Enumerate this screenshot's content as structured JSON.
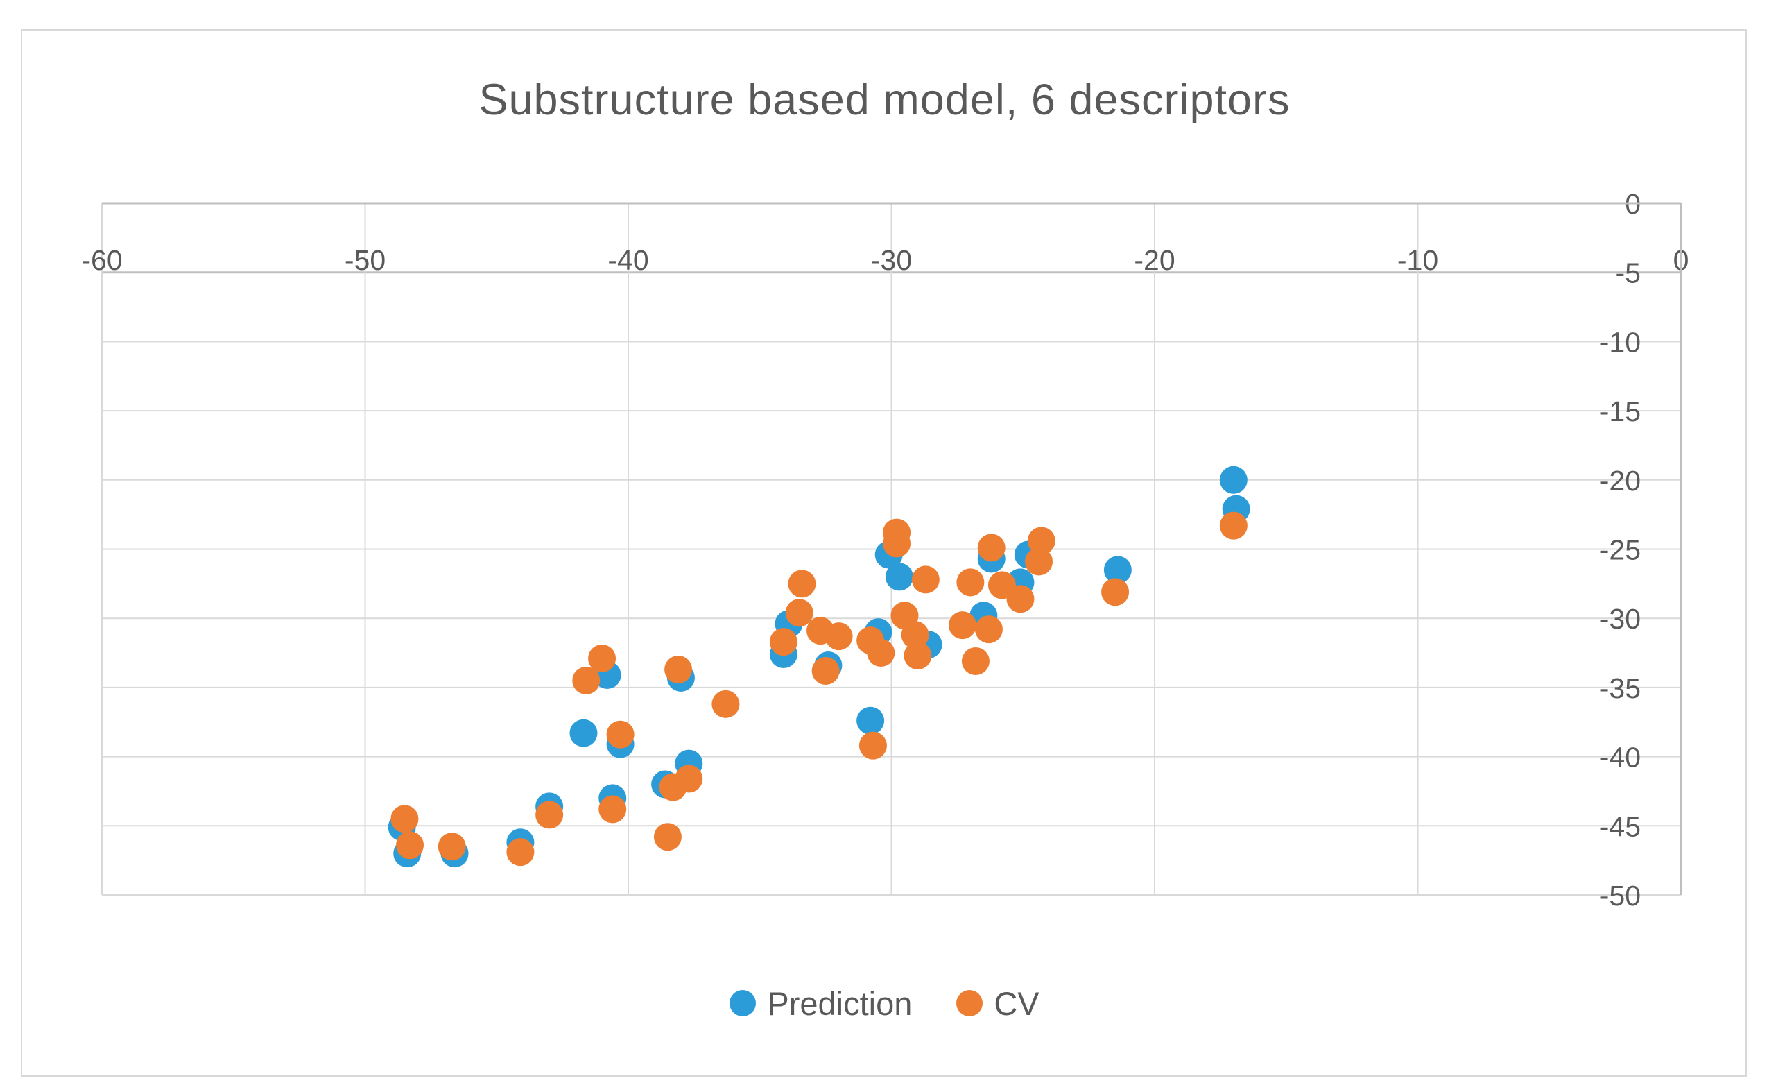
{
  "chart": {
    "title": "Substructure based model, 6 descriptors",
    "colors": {
      "prediction": "#2B9CD8",
      "cv": "#ED7D31",
      "grid": "#D9D9D9",
      "axis": "#BFBFBF",
      "text": "#595959",
      "frame": "#D8D8D8"
    },
    "legend": {
      "prediction_label": "Prediction",
      "cv_label": "CV"
    }
  },
  "chart_data": {
    "type": "scatter",
    "title": "Substructure based model, 6 descriptors",
    "xlabel": "",
    "ylabel": "",
    "xlim": [
      -60,
      0
    ],
    "ylim": [
      -50,
      0
    ],
    "x_tick_labels": [
      "-60",
      "-50",
      "-40",
      "-30",
      "-20",
      "-10",
      "0"
    ],
    "x_tick_values": [
      -60,
      -50,
      -40,
      -30,
      -20,
      -10,
      0
    ],
    "y_tick_labels": [
      "0",
      "-5",
      "-10",
      "-15",
      "-20",
      "-25",
      "-30",
      "-35",
      "-40",
      "-45",
      "-50"
    ],
    "y_tick_values": [
      0,
      -5,
      -10,
      -15,
      -20,
      -25,
      -30,
      -35,
      -40,
      -45,
      -50
    ],
    "grid": true,
    "legend_position": "bottom",
    "marker_radius_px": 20,
    "series": [
      {
        "name": "Prediction",
        "color": "#2B9CD8",
        "points": [
          [
            -48.6,
            -45.1
          ],
          [
            -48.4,
            -47.0
          ],
          [
            -46.6,
            -47.0
          ],
          [
            -44.1,
            -46.2
          ],
          [
            -43.0,
            -43.6
          ],
          [
            -40.6,
            -43.0
          ],
          [
            -41.7,
            -38.3
          ],
          [
            -40.3,
            -39.1
          ],
          [
            -40.8,
            -34.1
          ],
          [
            -38.0,
            -34.3
          ],
          [
            -37.7,
            -40.5
          ],
          [
            -38.6,
            -42.0
          ],
          [
            -33.9,
            -30.4
          ],
          [
            -34.1,
            -32.6
          ],
          [
            -32.4,
            -33.4
          ],
          [
            -30.5,
            -31.0
          ],
          [
            -30.8,
            -37.4
          ],
          [
            -30.1,
            -25.4
          ],
          [
            -29.7,
            -27.0
          ],
          [
            -28.6,
            -31.9
          ],
          [
            -26.5,
            -29.8
          ],
          [
            -26.2,
            -25.7
          ],
          [
            -25.1,
            -27.4
          ],
          [
            -24.8,
            -25.4
          ],
          [
            -21.4,
            -26.5
          ],
          [
            -17.0,
            -20.0
          ],
          [
            -16.9,
            -22.1
          ]
        ]
      },
      {
        "name": "CV",
        "color": "#ED7D31",
        "points": [
          [
            -48.5,
            -44.5
          ],
          [
            -48.3,
            -46.4
          ],
          [
            -46.7,
            -46.5
          ],
          [
            -44.1,
            -46.9
          ],
          [
            -43.0,
            -44.2
          ],
          [
            -40.6,
            -43.8
          ],
          [
            -38.5,
            -45.8
          ],
          [
            -40.3,
            -38.4
          ],
          [
            -41.0,
            -32.9
          ],
          [
            -41.6,
            -34.5
          ],
          [
            -38.1,
            -33.7
          ],
          [
            -36.3,
            -36.2
          ],
          [
            -37.7,
            -41.6
          ],
          [
            -38.3,
            -42.2
          ],
          [
            -30.7,
            -39.2
          ],
          [
            -29.8,
            -23.8
          ],
          [
            -29.8,
            -24.6
          ],
          [
            -28.7,
            -27.2
          ],
          [
            -27.0,
            -27.4
          ],
          [
            -26.2,
            -24.9
          ],
          [
            -25.8,
            -27.6
          ],
          [
            -25.1,
            -28.6
          ],
          [
            -24.3,
            -24.4
          ],
          [
            -24.4,
            -25.9
          ],
          [
            -33.4,
            -27.5
          ],
          [
            -33.5,
            -29.6
          ],
          [
            -34.1,
            -31.7
          ],
          [
            -32.7,
            -30.9
          ],
          [
            -32.0,
            -31.3
          ],
          [
            -32.5,
            -33.8
          ],
          [
            -30.8,
            -31.6
          ],
          [
            -30.4,
            -32.5
          ],
          [
            -29.5,
            -29.8
          ],
          [
            -29.1,
            -31.2
          ],
          [
            -29.0,
            -32.7
          ],
          [
            -27.3,
            -30.5
          ],
          [
            -26.3,
            -30.8
          ],
          [
            -26.8,
            -33.1
          ],
          [
            -21.5,
            -28.1
          ],
          [
            -17.0,
            -23.3
          ]
        ]
      }
    ]
  }
}
